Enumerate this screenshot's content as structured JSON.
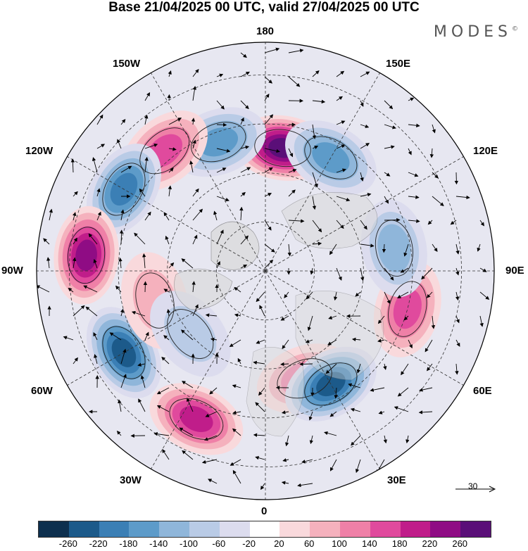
{
  "title": "Base 21/04/2025 00 UTC, valid 27/04/2025 00 UTC",
  "brand": "MODES",
  "brand_mark": "©",
  "longitude_labels": {
    "top": "180",
    "bottom": "0",
    "left": "90W",
    "right": "90E",
    "upper_left_1": "150W",
    "upper_left_2": "120W",
    "lower_left_1": "60W",
    "lower_left_2": "30W",
    "upper_right_1": "150E",
    "upper_right_2": "120E",
    "lower_right_1": "60E",
    "lower_right_2": "30E"
  },
  "reference_vector_label": "30",
  "colorbar": {
    "colors": [
      "#0d2f4e",
      "#1c5a8a",
      "#3b7fb5",
      "#5d9bc9",
      "#8fb6da",
      "#b9cbe6",
      "#dcdcee",
      "#ffffff",
      "#f9d9dc",
      "#f5b1bd",
      "#ef80a7",
      "#e04a9d",
      "#c01d8a",
      "#8f0c84",
      "#5a0f78"
    ],
    "ticks": [
      "-260",
      "-220",
      "-180",
      "-140",
      "-100",
      "-60",
      "-20",
      "20",
      "60",
      "100",
      "140",
      "180",
      "220",
      "260"
    ]
  },
  "anomaly_centers": [
    {
      "lon": 172,
      "lat": 52,
      "value": 240
    },
    {
      "lon": -160,
      "lat": 48,
      "value": -150
    },
    {
      "lon": -140,
      "lat": 42,
      "value": 150
    },
    {
      "lon": 150,
      "lat": 50,
      "value": -150
    },
    {
      "lon": -120,
      "lat": 40,
      "value": -170
    },
    {
      "lon": -95,
      "lat": 35,
      "value": 200
    },
    {
      "lon": -60,
      "lat": 40,
      "value": -200
    },
    {
      "lon": -25,
      "lat": 40,
      "value": 190
    },
    {
      "lon": 20,
      "lat": 55,
      "value": 110
    },
    {
      "lon": 30,
      "lat": 50,
      "value": -200
    },
    {
      "lon": 75,
      "lat": 45,
      "value": 130
    },
    {
      "lon": 100,
      "lat": 50,
      "value": -90
    },
    {
      "lon": -75,
      "lat": 55,
      "value": 60
    },
    {
      "lon": -50,
      "lat": 60,
      "value": -60
    }
  ]
}
